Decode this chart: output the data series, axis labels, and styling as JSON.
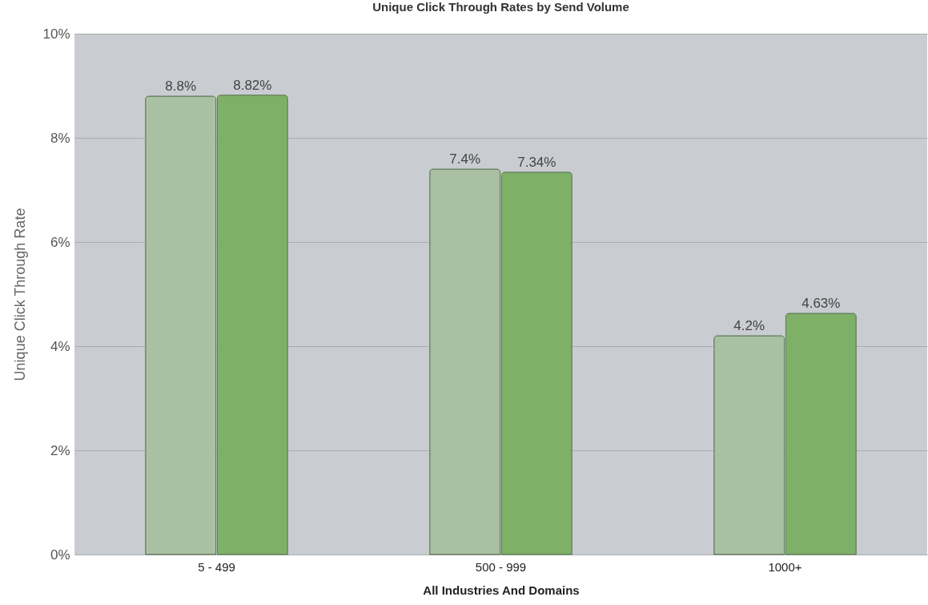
{
  "chart_data": {
    "type": "bar",
    "title": "Unique Click Through Rates by Send Volume",
    "xlabel": "All Industries And Domains",
    "ylabel": "Unique Click Through Rate",
    "categories": [
      "5 - 499",
      "500 - 999",
      "1000+"
    ],
    "series": [
      {
        "color": "#a9c0a3",
        "values": [
          8.8,
          7.4,
          4.2
        ],
        "value_labels": [
          "8.8%",
          "7.4%",
          "4.2%"
        ]
      },
      {
        "color": "#7fb068",
        "values": [
          8.82,
          7.34,
          4.63
        ],
        "value_labels": [
          "8.82%",
          "7.34%",
          "4.63%"
        ]
      }
    ],
    "ylim": [
      0,
      10
    ],
    "yticks": [
      {
        "value": 0,
        "label": "0%"
      },
      {
        "value": 2,
        "label": "2%"
      },
      {
        "value": 4,
        "label": "4%"
      },
      {
        "value": 6,
        "label": "6%"
      },
      {
        "value": 8,
        "label": "8%"
      },
      {
        "value": 10,
        "label": "10%"
      }
    ],
    "grid": "y",
    "legend": false
  }
}
